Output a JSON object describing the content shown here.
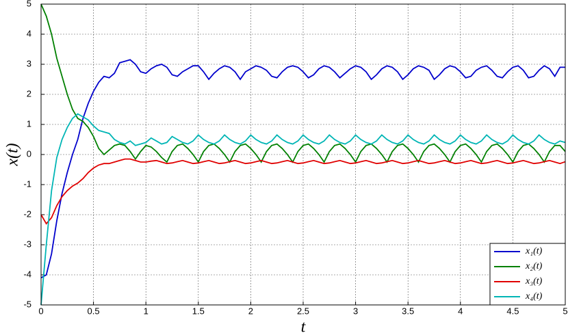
{
  "chart_data": {
    "type": "line",
    "xlabel": "t",
    "ylabel": "x(t)",
    "x": [
      0,
      0.05,
      0.1,
      0.15,
      0.2,
      0.25,
      0.3,
      0.35,
      0.4,
      0.45,
      0.5,
      0.55,
      0.6,
      0.65,
      0.7,
      0.75,
      0.8,
      0.85,
      0.9,
      0.95,
      1,
      1.05,
      1.1,
      1.15,
      1.2,
      1.25,
      1.3,
      1.35,
      1.4,
      1.45,
      1.5,
      1.55,
      1.6,
      1.65,
      1.7,
      1.75,
      1.8,
      1.85,
      1.9,
      1.95,
      2,
      2.05,
      2.1,
      2.15,
      2.2,
      2.25,
      2.3,
      2.35,
      2.4,
      2.45,
      2.5,
      2.55,
      2.6,
      2.65,
      2.7,
      2.75,
      2.8,
      2.85,
      2.9,
      2.95,
      3,
      3.05,
      3.1,
      3.15,
      3.2,
      3.25,
      3.3,
      3.35,
      3.4,
      3.45,
      3.5,
      3.55,
      3.6,
      3.65,
      3.7,
      3.75,
      3.8,
      3.85,
      3.9,
      3.95,
      4,
      4.05,
      4.1,
      4.15,
      4.2,
      4.25,
      4.3,
      4.35,
      4.4,
      4.45,
      4.5,
      4.55,
      4.6,
      4.65,
      4.7,
      4.75,
      4.8,
      4.85,
      4.9,
      4.95,
      5
    ],
    "series": [
      {
        "name": "x₁(t)",
        "color": "#0000cc",
        "values": [
          -4.1,
          -4.0,
          -3.3,
          -2.2,
          -1.3,
          -0.6,
          0,
          0.5,
          1.2,
          1.7,
          2.1,
          2.4,
          2.6,
          2.55,
          2.7,
          3.05,
          3.1,
          3.15,
          3.0,
          2.75,
          2.7,
          2.85,
          2.95,
          3.0,
          2.9,
          2.65,
          2.6,
          2.75,
          2.85,
          2.95,
          2.95,
          2.75,
          2.5,
          2.7,
          2.85,
          2.95,
          2.9,
          2.75,
          2.5,
          2.75,
          2.85,
          2.95,
          2.9,
          2.8,
          2.6,
          2.55,
          2.75,
          2.9,
          2.95,
          2.9,
          2.75,
          2.55,
          2.65,
          2.85,
          2.95,
          2.9,
          2.75,
          2.55,
          2.7,
          2.85,
          2.95,
          2.9,
          2.75,
          2.5,
          2.65,
          2.85,
          2.95,
          2.9,
          2.75,
          2.5,
          2.65,
          2.85,
          2.95,
          2.9,
          2.8,
          2.5,
          2.65,
          2.85,
          2.95,
          2.9,
          2.75,
          2.55,
          2.6,
          2.8,
          2.9,
          2.95,
          2.8,
          2.6,
          2.55,
          2.75,
          2.9,
          2.95,
          2.8,
          2.55,
          2.6,
          2.8,
          2.95,
          2.85,
          2.6,
          2.9,
          2.9
        ]
      },
      {
        "name": "x₂(t)",
        "color": "#008000",
        "values": [
          5,
          4.6,
          4.0,
          3.2,
          2.6,
          2.0,
          1.5,
          1.2,
          1.1,
          0.9,
          0.6,
          0.2,
          0,
          0.15,
          0.3,
          0.35,
          0.3,
          0.1,
          -0.15,
          0.1,
          0.3,
          0.25,
          0.1,
          -0.1,
          -0.25,
          0.1,
          0.3,
          0.35,
          0.2,
          0,
          -0.25,
          0.1,
          0.3,
          0.35,
          0.2,
          0,
          -0.25,
          0.1,
          0.3,
          0.35,
          0.2,
          0,
          -0.25,
          0.1,
          0.3,
          0.35,
          0.2,
          0,
          -0.25,
          0.1,
          0.3,
          0.35,
          0.2,
          0,
          -0.25,
          0.1,
          0.3,
          0.35,
          0.2,
          0,
          -0.25,
          0.1,
          0.3,
          0.35,
          0.2,
          0,
          -0.25,
          0.1,
          0.3,
          0.35,
          0.2,
          0,
          -0.25,
          0.1,
          0.3,
          0.35,
          0.2,
          0,
          -0.25,
          0.1,
          0.3,
          0.35,
          0.2,
          0,
          -0.25,
          0.1,
          0.3,
          0.35,
          0.2,
          0,
          -0.25,
          0.1,
          0.3,
          0.35,
          0.2,
          0,
          -0.25,
          0.1,
          0.3,
          0.3,
          0.1
        ]
      },
      {
        "name": "x₃(t)",
        "color": "#e00000",
        "values": [
          -2,
          -2.3,
          -2.1,
          -1.7,
          -1.4,
          -1.2,
          -1.05,
          -0.95,
          -0.8,
          -0.6,
          -0.45,
          -0.35,
          -0.3,
          -0.3,
          -0.25,
          -0.2,
          -0.15,
          -0.15,
          -0.2,
          -0.25,
          -0.25,
          -0.22,
          -0.2,
          -0.25,
          -0.3,
          -0.28,
          -0.24,
          -0.2,
          -0.25,
          -0.3,
          -0.28,
          -0.24,
          -0.2,
          -0.25,
          -0.3,
          -0.28,
          -0.24,
          -0.2,
          -0.25,
          -0.3,
          -0.28,
          -0.24,
          -0.2,
          -0.25,
          -0.3,
          -0.28,
          -0.24,
          -0.2,
          -0.25,
          -0.3,
          -0.28,
          -0.24,
          -0.2,
          -0.25,
          -0.3,
          -0.28,
          -0.24,
          -0.2,
          -0.25,
          -0.3,
          -0.28,
          -0.24,
          -0.2,
          -0.25,
          -0.3,
          -0.28,
          -0.24,
          -0.2,
          -0.25,
          -0.3,
          -0.28,
          -0.24,
          -0.2,
          -0.25,
          -0.3,
          -0.28,
          -0.24,
          -0.2,
          -0.25,
          -0.3,
          -0.28,
          -0.24,
          -0.2,
          -0.25,
          -0.3,
          -0.28,
          -0.24,
          -0.2,
          -0.25,
          -0.3,
          -0.28,
          -0.24,
          -0.2,
          -0.25,
          -0.3,
          -0.28,
          -0.24,
          -0.2,
          -0.25,
          -0.3,
          -0.24
        ]
      },
      {
        "name": "x₄(t)",
        "color": "#00b5b5",
        "values": [
          -5,
          -3.0,
          -1.2,
          -0.1,
          0.5,
          0.9,
          1.2,
          1.35,
          1.25,
          1.15,
          0.95,
          0.8,
          0.75,
          0.7,
          0.5,
          0.4,
          0.35,
          0.45,
          0.3,
          0.35,
          0.4,
          0.55,
          0.45,
          0.35,
          0.4,
          0.6,
          0.5,
          0.4,
          0.35,
          0.45,
          0.65,
          0.5,
          0.4,
          0.35,
          0.45,
          0.65,
          0.5,
          0.4,
          0.35,
          0.45,
          0.65,
          0.5,
          0.4,
          0.35,
          0.45,
          0.65,
          0.5,
          0.4,
          0.35,
          0.45,
          0.65,
          0.5,
          0.4,
          0.35,
          0.45,
          0.65,
          0.5,
          0.4,
          0.35,
          0.45,
          0.65,
          0.5,
          0.4,
          0.35,
          0.45,
          0.65,
          0.5,
          0.4,
          0.35,
          0.45,
          0.65,
          0.5,
          0.4,
          0.35,
          0.45,
          0.65,
          0.5,
          0.4,
          0.35,
          0.45,
          0.65,
          0.5,
          0.4,
          0.35,
          0.45,
          0.65,
          0.5,
          0.4,
          0.35,
          0.45,
          0.65,
          0.5,
          0.4,
          0.35,
          0.45,
          0.65,
          0.5,
          0.4,
          0.35,
          0.45,
          0.4
        ]
      }
    ],
    "xlim": [
      0,
      5
    ],
    "ylim": [
      -5,
      5
    ],
    "xticks": [
      0,
      0.5,
      1,
      1.5,
      2,
      2.5,
      3,
      3.5,
      4,
      4.5,
      5
    ],
    "yticks": [
      -5,
      -4,
      -3,
      -2,
      -1,
      0,
      1,
      2,
      3,
      4,
      5
    ],
    "grid": true,
    "legend": "lower right"
  }
}
